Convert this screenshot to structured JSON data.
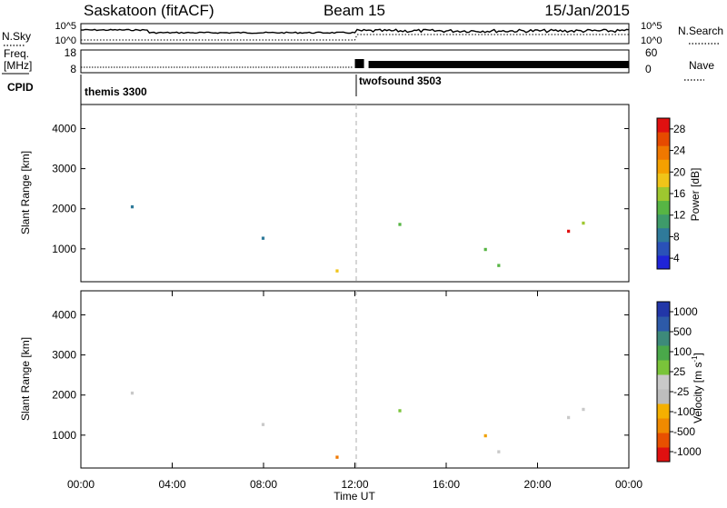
{
  "header": {
    "radar_title": "Saskatoon (fitACF)",
    "beam_label": "Beam 15",
    "date_label": "15/Jan/2015"
  },
  "colors": {
    "power_scale": [
      "#1f24d8",
      "#2a51b8",
      "#2f7a9a",
      "#3e9b6a",
      "#57b544",
      "#9ec72f",
      "#f0c419",
      "#f5a000",
      "#f07800",
      "#e64a00",
      "#e01010"
    ],
    "velocity_scale": [
      "#2236a8",
      "#2d5aa8",
      "#3d8a7a",
      "#4aa84a",
      "#7ac43a",
      "#c9c9c9",
      "#bdbdbd",
      "#f5b000",
      "#f08a00",
      "#e85000",
      "#e01010"
    ]
  },
  "chart_data": [
    {
      "type": "line",
      "name": "noise-panel",
      "left_label": "N.Sky",
      "right_label": "N.Search",
      "left_ticks": [
        "10^5",
        "10^0"
      ],
      "right_ticks": [
        "10^5",
        "10^0"
      ],
      "yscale": "log",
      "ylim": [
        1,
        100000
      ]
    },
    {
      "type": "line",
      "name": "frequency-panel",
      "left_label_top": "Freq.",
      "left_label_bottom": "[MHz]",
      "right_label": "Nave",
      "left_ticks": [
        18,
        8
      ],
      "right_ticks": [
        60,
        0
      ],
      "ylim": [
        8,
        18
      ],
      "y2lim": [
        0,
        60
      ]
    },
    {
      "type": "table",
      "name": "cpid-row",
      "label": "CPID",
      "segments": [
        {
          "start_hour": 0,
          "end_hour": 12,
          "label": "themis 3300"
        },
        {
          "start_hour": 12,
          "end_hour": 24,
          "label": "twofsound 3503"
        }
      ]
    },
    {
      "type": "heatmap",
      "name": "power-panel",
      "ylabel": "Slant Range [km]",
      "yticks": [
        1000,
        2000,
        3000,
        4000
      ],
      "ylim": [
        180,
        4600
      ],
      "xlim": [
        0,
        24
      ],
      "colorbar_label": "Power [dB]",
      "colorbar_ticks": [
        "28",
        "24",
        "20",
        "16",
        "12",
        "8",
        "4"
      ],
      "colorbar_range": [
        0,
        30
      ]
    },
    {
      "type": "heatmap",
      "name": "velocity-panel",
      "ylabel": "Slant Range [km]",
      "yticks": [
        1000,
        2000,
        3000,
        4000
      ],
      "ylim": [
        180,
        4600
      ],
      "xlim": [
        0,
        24
      ],
      "xlabel": "Time UT",
      "xtick_labels": [
        "00:00",
        "04:00",
        "08:00",
        "12:00",
        "16:00",
        "20:00",
        "00:00"
      ],
      "colorbar_label": "Velocity [m s",
      "colorbar_superscript": "-1",
      "colorbar_close": "]",
      "colorbar_ticks": [
        "1000",
        "500",
        "100",
        "25",
        "-25",
        "-100",
        "-500",
        "-1000"
      ]
    }
  ]
}
